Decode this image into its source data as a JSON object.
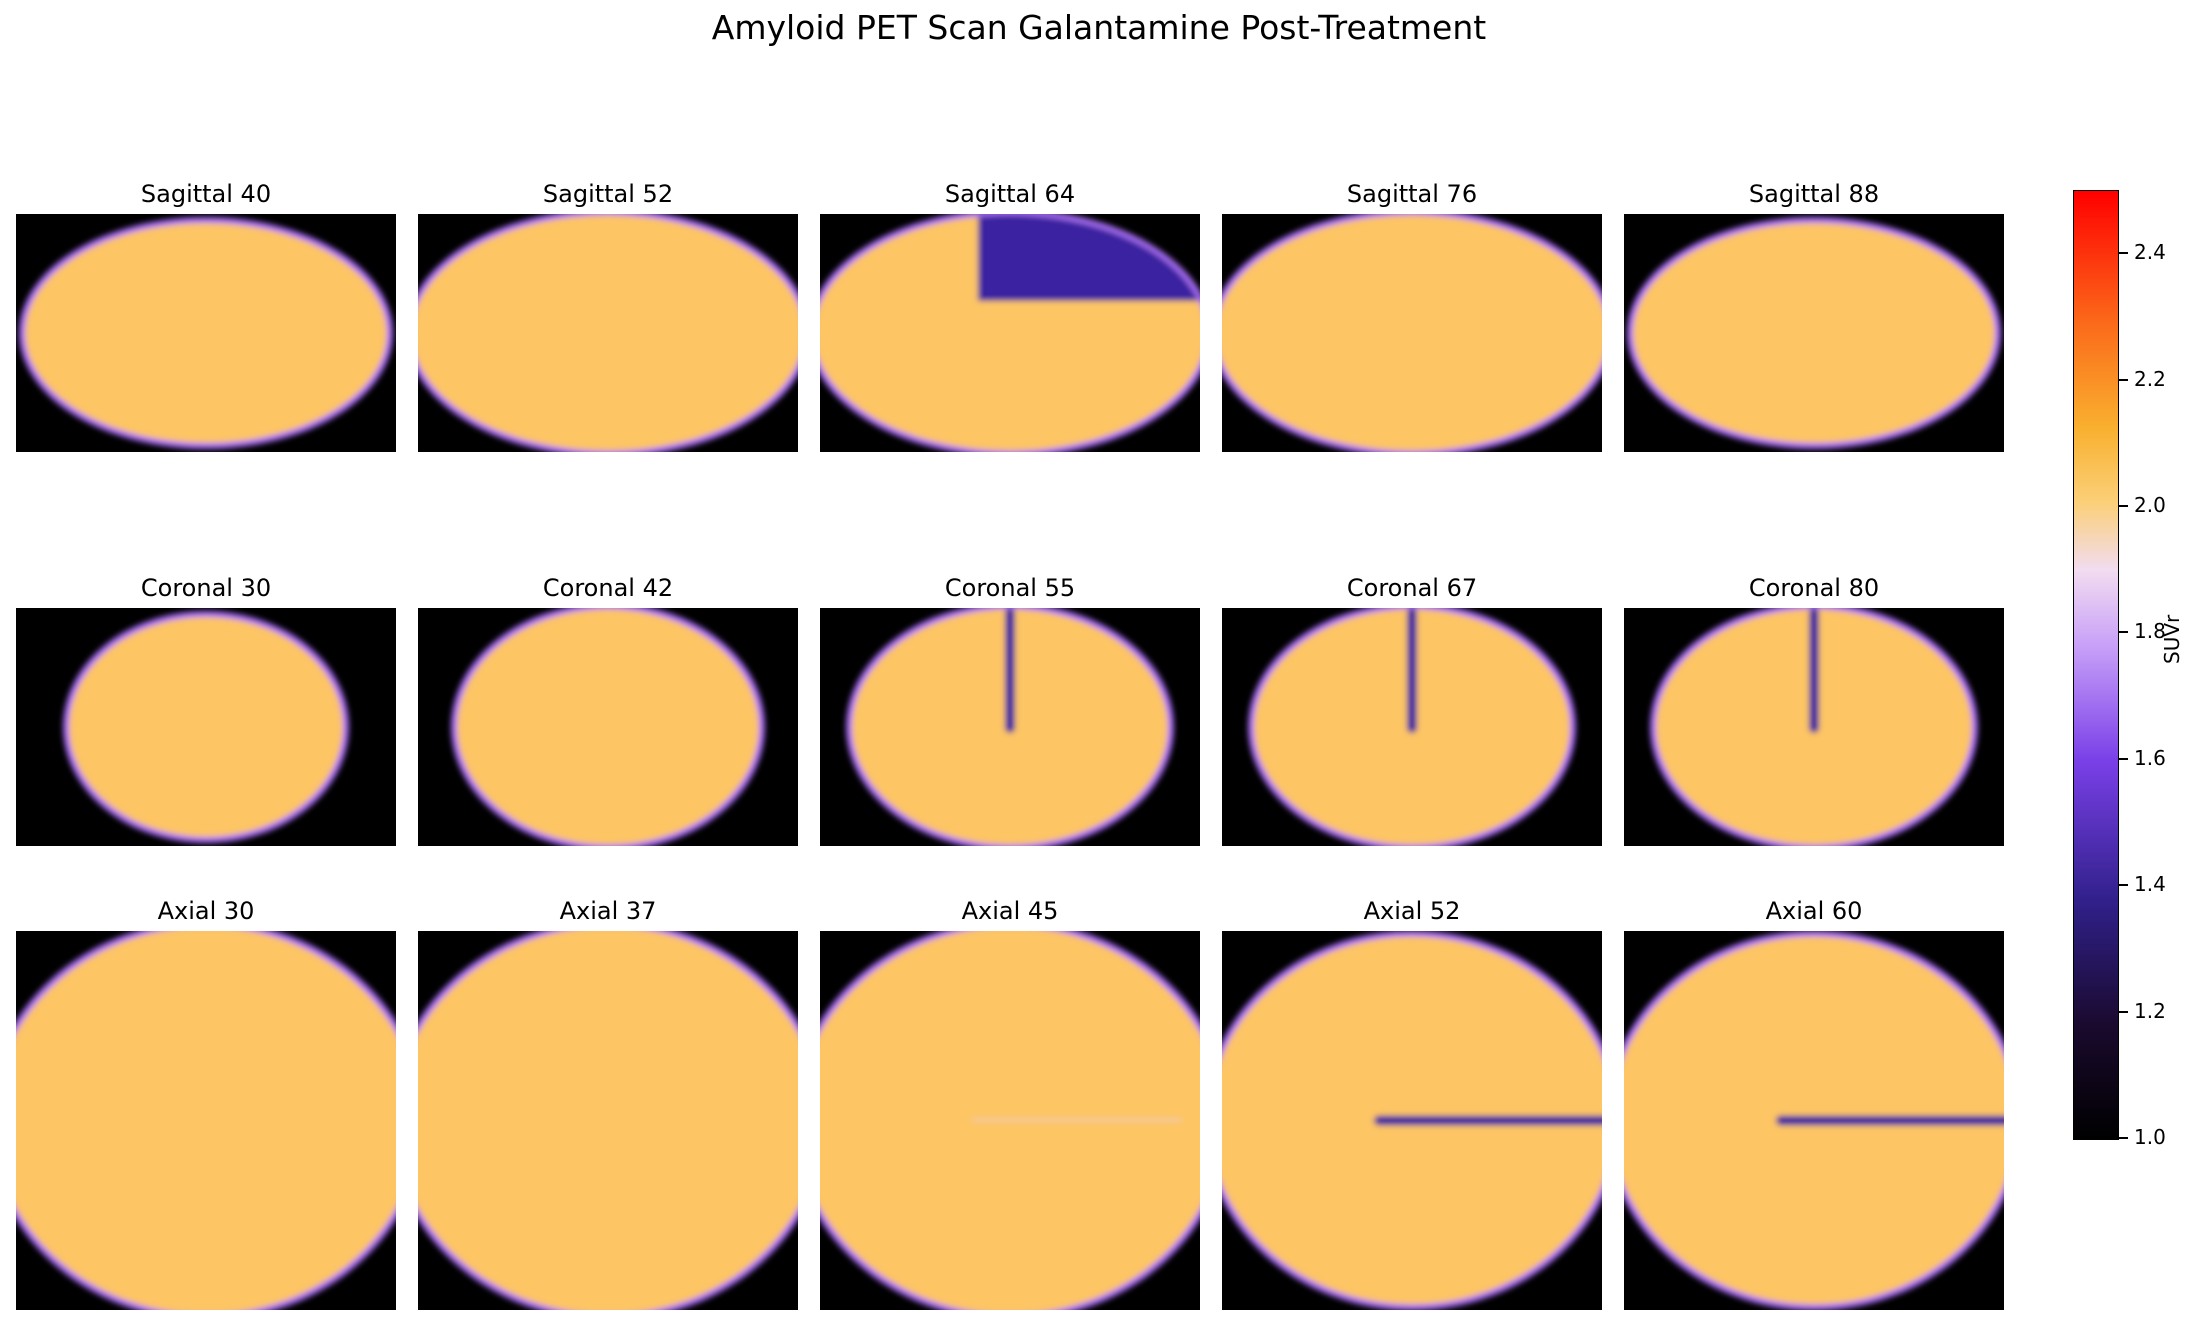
{
  "figure": {
    "title": "Amyloid PET Scan Galantamine Post-Treatment",
    "colorbar": {
      "label": "SUVr",
      "vmin": 1.0,
      "vmax": 2.5,
      "ticks": [
        "1.0",
        "1.2",
        "1.4",
        "1.6",
        "1.8",
        "2.0",
        "2.2",
        "2.4"
      ],
      "colormap": "gnuplot2-like"
    },
    "colors": {
      "background": "#000000",
      "tissue": "#fdc563",
      "edge": "#a56cf5",
      "lesion": "#3a22a0"
    }
  },
  "panels": [
    {
      "title": "Sagittal 40",
      "view": "sagittal",
      "feature": "none"
    },
    {
      "title": "Sagittal 52",
      "view": "sagittal",
      "feature": "none"
    },
    {
      "title": "Sagittal 64",
      "view": "sagittal",
      "feature": "lesion-quadrant"
    },
    {
      "title": "Sagittal 76",
      "view": "sagittal",
      "feature": "none"
    },
    {
      "title": "Sagittal 88",
      "view": "sagittal",
      "feature": "none"
    },
    {
      "title": "Coronal 30",
      "view": "coronal",
      "feature": "none"
    },
    {
      "title": "Coronal 42",
      "view": "coronal",
      "feature": "none"
    },
    {
      "title": "Coronal 55",
      "view": "coronal",
      "feature": "vertical-slit"
    },
    {
      "title": "Coronal 67",
      "view": "coronal",
      "feature": "vertical-slit"
    },
    {
      "title": "Coronal 80",
      "view": "coronal",
      "feature": "vertical-slit"
    },
    {
      "title": "Axial 30",
      "view": "axial",
      "feature": "none"
    },
    {
      "title": "Axial 37",
      "view": "axial",
      "feature": "none"
    },
    {
      "title": "Axial 45",
      "view": "axial",
      "feature": "faint-line"
    },
    {
      "title": "Axial 52",
      "view": "axial",
      "feature": "horizontal-slit"
    },
    {
      "title": "Axial 60",
      "view": "axial",
      "feature": "horizontal-slit"
    }
  ]
}
